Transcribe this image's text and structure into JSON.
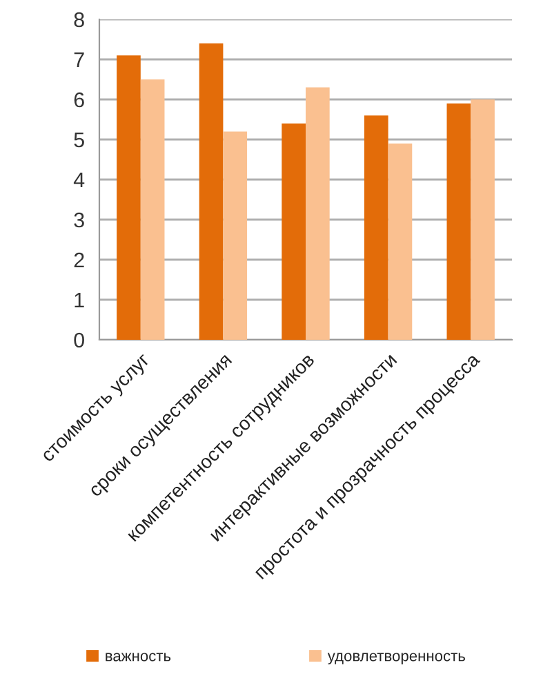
{
  "chart_data": {
    "type": "bar",
    "categories": [
      "стоимость услуг",
      "сроки осуществления",
      "компетентность сотрудников",
      "интерактивные возможности",
      "простота и прозрачность процесса"
    ],
    "series": [
      {
        "name": "важность",
        "color": "#e36c09",
        "values": [
          7.1,
          7.4,
          5.4,
          5.6,
          5.9
        ]
      },
      {
        "name": "удовлетворенность",
        "color": "#fac090",
        "values": [
          6.5,
          5.2,
          6.3,
          4.9,
          6.0
        ]
      }
    ],
    "ylim": [
      0,
      8
    ],
    "yticks": [
      0,
      1,
      2,
      3,
      4,
      5,
      6,
      7,
      8
    ],
    "grid": "y",
    "legend": "bottom"
  }
}
